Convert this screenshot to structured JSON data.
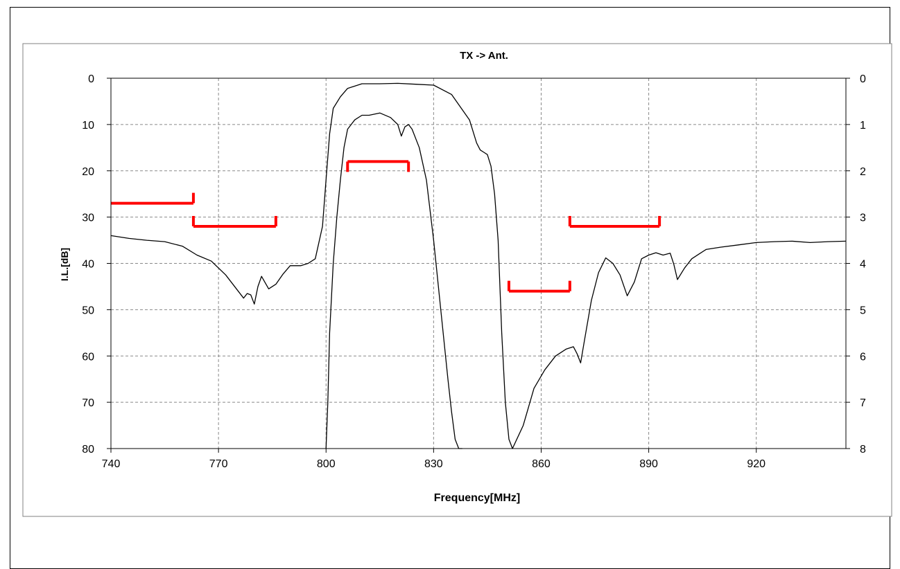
{
  "chart_data": {
    "type": "line",
    "title": "TX -> Ant.",
    "xlabel": "Frequency[MHz]",
    "ylabel": "I.L.[dB]",
    "xlim": [
      740,
      945
    ],
    "ylim": [
      80,
      0
    ],
    "y2lim": [
      8,
      0
    ],
    "x_ticks": [
      740,
      770,
      800,
      830,
      860,
      890,
      920
    ],
    "y_ticks": [
      0,
      10,
      20,
      30,
      40,
      50,
      60,
      70,
      80
    ],
    "y2_ticks": [
      0,
      1,
      2,
      3,
      4,
      5,
      6,
      7,
      8
    ],
    "grid": true,
    "series": [
      {
        "axis": "left",
        "x": [
          740,
          745,
          750,
          755,
          760,
          764,
          768,
          772,
          775,
          777,
          778,
          779,
          780,
          781,
          782,
          784,
          786,
          788,
          790,
          793,
          795,
          797,
          799,
          800,
          801,
          802,
          804,
          806,
          810,
          815,
          820,
          825,
          830,
          835,
          840,
          842,
          843,
          844,
          845,
          846,
          847,
          848,
          849,
          850,
          851,
          852,
          855,
          858,
          861,
          864,
          867,
          869,
          870,
          871,
          872,
          874,
          876,
          878,
          880,
          882,
          884,
          886,
          888,
          890,
          892,
          894,
          896,
          897,
          898,
          900,
          902,
          904,
          906,
          910,
          915,
          920,
          925,
          930,
          935,
          940,
          945
        ],
        "y": [
          34,
          34.6,
          35,
          35.3,
          36.3,
          38.2,
          39.5,
          42.5,
          45.5,
          47.5,
          46.5,
          46.8,
          48.8,
          45,
          42.8,
          45.5,
          44.5,
          42.3,
          40.5,
          40.5,
          40,
          39,
          32,
          22,
          12,
          6.5,
          4,
          2.2,
          1.2,
          1.2,
          1.1,
          1.3,
          1.5,
          3.5,
          9,
          14,
          15.5,
          16,
          16.5,
          19,
          25,
          35,
          55,
          70,
          78,
          80,
          75,
          67,
          63,
          60,
          58.5,
          58,
          59.5,
          61.5,
          57,
          48,
          42,
          38.8,
          40,
          42.5,
          47,
          44,
          39,
          38.2,
          37.7,
          38.2,
          37.8,
          40.2,
          43.5,
          41,
          39,
          38,
          37,
          36.5,
          36,
          35.5,
          35.3,
          35.2,
          35.5,
          35.3,
          35.2
        ]
      },
      {
        "axis": "right",
        "x": [
          800,
          800.5,
          801,
          802,
          803,
          804,
          805,
          806,
          808,
          810,
          812,
          815,
          818,
          820,
          821,
          822,
          823,
          824,
          826,
          828,
          830,
          832,
          834,
          835,
          836,
          837,
          838
        ],
        "y": [
          8,
          7,
          5.5,
          4,
          3,
          2.2,
          1.5,
          1.1,
          0.9,
          0.8,
          0.8,
          0.75,
          0.85,
          1.0,
          1.25,
          1.05,
          1.0,
          1.1,
          1.5,
          2.2,
          3.5,
          5,
          6.5,
          7.2,
          7.8,
          8,
          8
        ]
      }
    ],
    "spec_masks": [
      {
        "x": [
          740,
          763
        ],
        "y": 27,
        "tick": "end-up"
      },
      {
        "x": [
          763,
          786
        ],
        "y": 32,
        "tick": "both-up"
      },
      {
        "x": [
          806,
          823
        ],
        "y": 18,
        "tick": "both-down"
      },
      {
        "x": [
          851,
          868
        ],
        "y": 46,
        "tick": "both-up"
      },
      {
        "x": [
          868,
          893
        ],
        "y": 32,
        "tick": "both-up"
      }
    ],
    "colors": {
      "curve": "#000000",
      "mask": "#ff0000",
      "grid": "#888888",
      "frame": "#000000"
    }
  }
}
